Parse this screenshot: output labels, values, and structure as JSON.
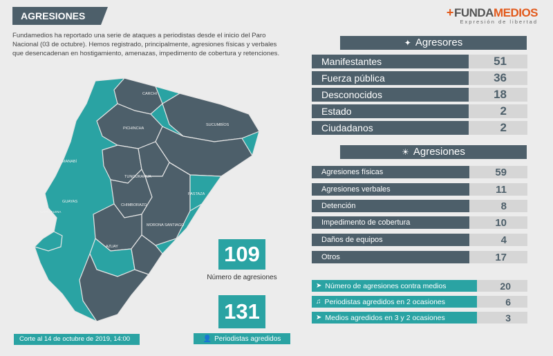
{
  "header": {
    "title": "AGRESIONES",
    "logo_plus": "+",
    "logo_funda": "FUNDA",
    "logo_medios": "MEDIOS",
    "logo_tagline": "Expresión de libertad"
  },
  "intro": "Fundamedios ha reportado una serie de ataques a periodistas desde el inicio del Paro Nacional (03 de octubre). Hemos registrado, principalmente, agresiones físicas y verbales que desencadenan en hostigamiento, amenazas, impedimento de cobertura y retenciones.",
  "map": {
    "provinces": [
      "CARCHI",
      "SUCUMBÍOS",
      "PICHINCHA",
      "MANABÍ",
      "TUNGURAHUA",
      "GUAYAS",
      "PASTAZA",
      "SANTA ELENA",
      "CHIMBORAZO",
      "MORONA SANTIAGO",
      "AZUAY"
    ]
  },
  "stats": {
    "agresiones_value": "109",
    "agresiones_label": "Número de agresiones",
    "periodistas_value": "131",
    "periodistas_label": "Periodistas agredidos"
  },
  "footer": {
    "date": "Corte al 14 de octubre de 2019, 14:00"
  },
  "agresores": {
    "title": "Agresores",
    "icon": "people-icon",
    "rows": [
      {
        "label": "Manifestantes",
        "value": "51"
      },
      {
        "label": "Fuerza pública",
        "value": "36"
      },
      {
        "label": "Desconocidos",
        "value": "18"
      },
      {
        "label": "Estado",
        "value": "2"
      },
      {
        "label": "Ciudadanos",
        "value": "2"
      }
    ]
  },
  "agresiones": {
    "title": "Agresiones",
    "icon": "lightbulb-icon",
    "rows": [
      {
        "label": "Agresiones físicas",
        "value": "59"
      },
      {
        "label": "Agresiones verbales",
        "value": "11"
      },
      {
        "label": "Detención",
        "value": "8"
      },
      {
        "label": "Impedimento de cobertura",
        "value": "10"
      },
      {
        "label": "Daños de equipos",
        "value": "4"
      },
      {
        "label": "Otros",
        "value": "17"
      }
    ]
  },
  "summary": {
    "rows": [
      {
        "label": "Número de agresiones contra medios",
        "value": "20",
        "icon": "satellite-icon"
      },
      {
        "label": "Periodistas agredidos en 2 ocasiones",
        "value": "6",
        "icon": "microphone-icon"
      },
      {
        "label": "Medios agredidos en 3 y 2 ocasiones",
        "value": "3",
        "icon": "satellite-icon"
      }
    ]
  },
  "colors": {
    "dark": "#4d5f6a",
    "teal": "#2aa3a3",
    "gray": "#d6d6d6",
    "accent": "#e25a1c"
  }
}
